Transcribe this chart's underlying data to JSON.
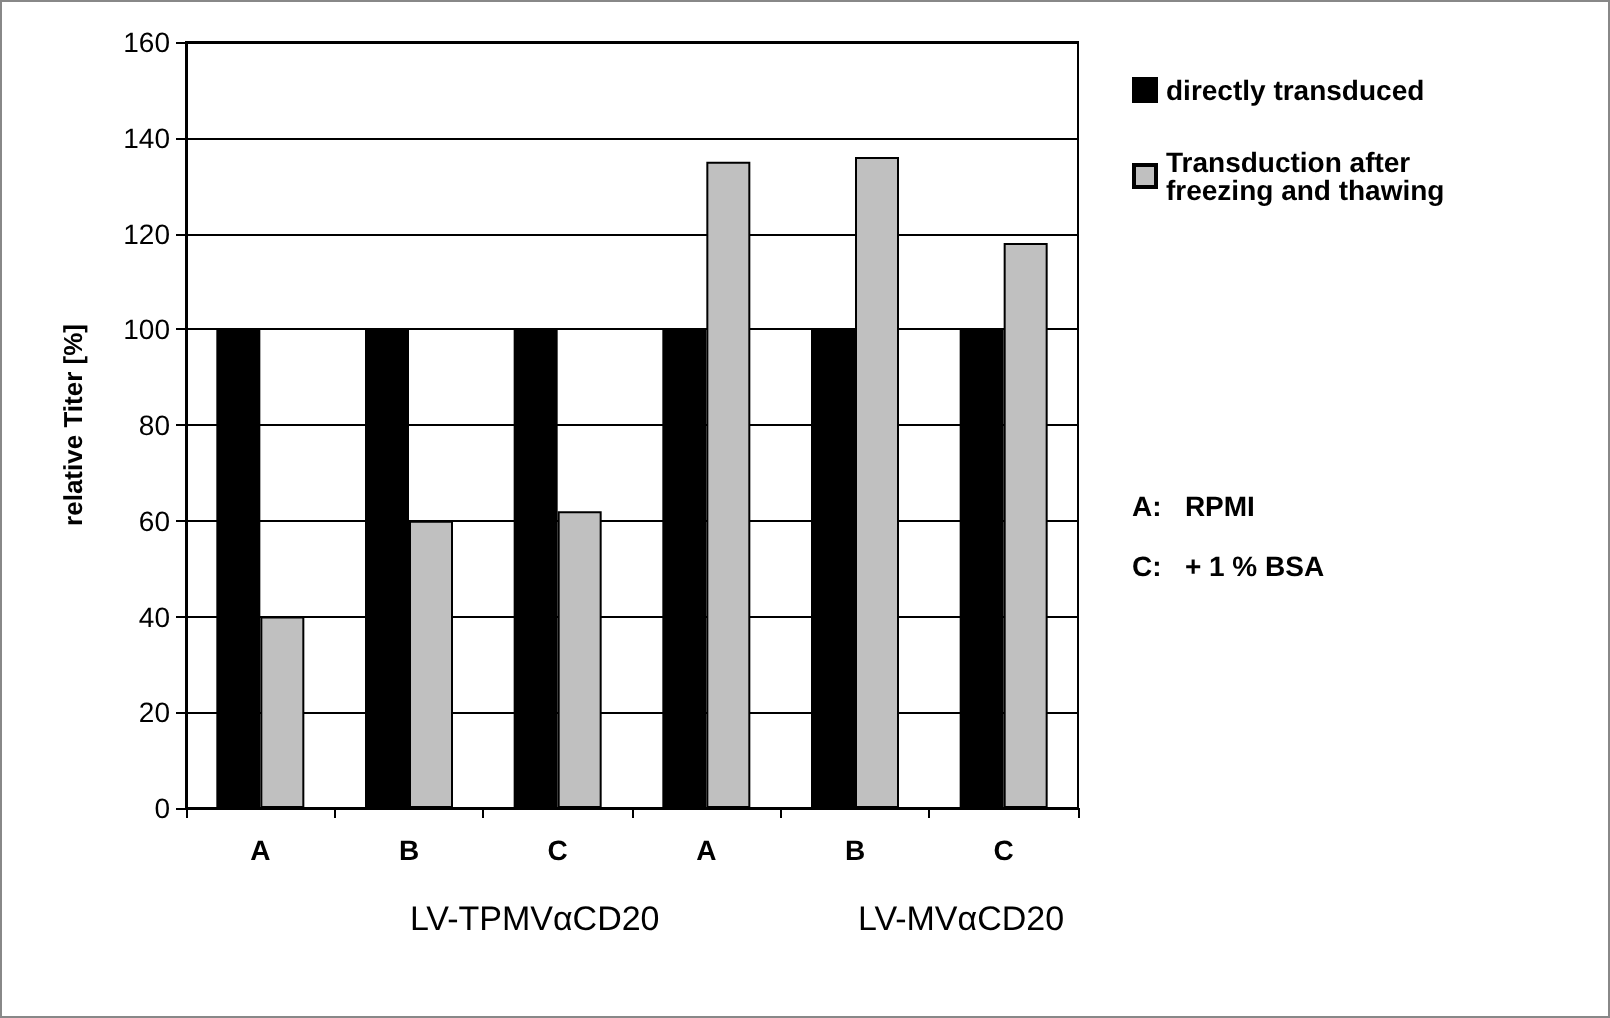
{
  "chart_data": {
    "type": "bar",
    "ylabel": "relative Titer [%]",
    "categories": [
      "A",
      "B",
      "C",
      "A",
      "B",
      "C"
    ],
    "series": [
      {
        "name": "directly transduced",
        "color": "#000000",
        "values": [
          100,
          100,
          100,
          100,
          100,
          100
        ]
      },
      {
        "name": "Transduction after\nfreezing and thawing",
        "color": "#c0c0c0",
        "values": [
          40,
          60,
          62,
          135,
          136,
          118
        ]
      }
    ],
    "ylim": [
      0,
      160
    ],
    "yticks": [
      0,
      20,
      40,
      60,
      80,
      100,
      120,
      140,
      160
    ],
    "grid": "y",
    "legend": "top right",
    "annotations": [
      "LV-TPMVαCD20",
      "LV-MVαCD20",
      "A:   RPMI",
      "C:   + 1 % BSA"
    ]
  }
}
